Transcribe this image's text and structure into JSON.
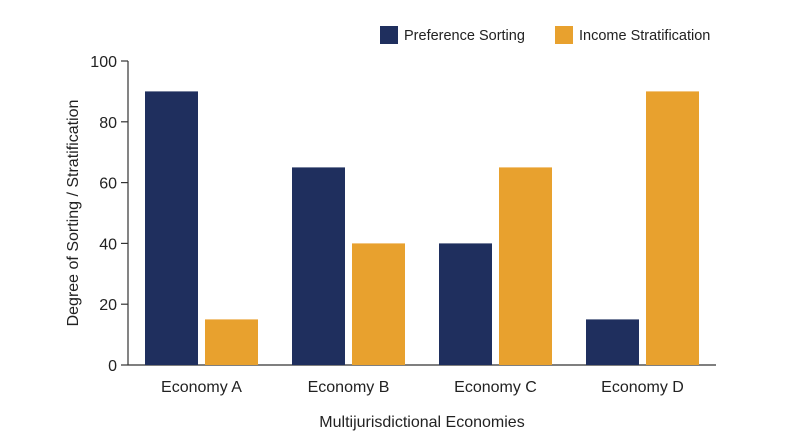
{
  "chart_data": {
    "type": "bar",
    "title": "",
    "xlabel": "Multijurisdictional Economies",
    "ylabel": "Degree of Sorting / Stratification",
    "categories": [
      "Economy A",
      "Economy B",
      "Economy C",
      "Economy D"
    ],
    "series": [
      {
        "name": "Preference Sorting",
        "color": "#1f2f5e",
        "values": [
          90,
          65,
          40,
          15
        ]
      },
      {
        "name": "Income Stratification",
        "color": "#e8a12e",
        "values": [
          15,
          40,
          65,
          90
        ]
      }
    ],
    "ylim": [
      0,
      100
    ],
    "yticks": [
      "0",
      "20",
      "40",
      "60",
      "80",
      "100"
    ],
    "grid": false,
    "legend_position": "top-right"
  }
}
